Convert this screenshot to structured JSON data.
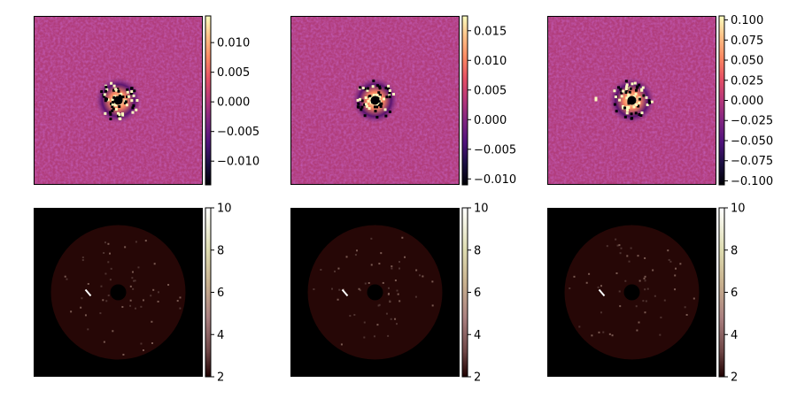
{
  "chart_data": [
    {
      "type": "heatmap",
      "colormap": "magma",
      "description_row": "top",
      "colorbar": {
        "vmin": -0.014,
        "vmax": 0.0145,
        "ticks": [
          {
            "value": 0.01,
            "label": "0.010"
          },
          {
            "value": 0.005,
            "label": "0.005"
          },
          {
            "value": 0.0,
            "label": "0.000"
          },
          {
            "value": -0.005,
            "label": "−0.005"
          },
          {
            "value": -0.01,
            "label": "−0.010"
          }
        ]
      }
    },
    {
      "type": "heatmap",
      "colormap": "magma",
      "description_row": "top",
      "colorbar": {
        "vmin": -0.011,
        "vmax": 0.0175,
        "ticks": [
          {
            "value": 0.015,
            "label": "0.015"
          },
          {
            "value": 0.01,
            "label": "0.010"
          },
          {
            "value": 0.005,
            "label": "0.005"
          },
          {
            "value": 0.0,
            "label": "0.000"
          },
          {
            "value": -0.005,
            "label": "−0.005"
          },
          {
            "value": -0.01,
            "label": "−0.010"
          }
        ]
      }
    },
    {
      "type": "heatmap",
      "colormap": "magma",
      "description_row": "top",
      "colorbar": {
        "vmin": -0.105,
        "vmax": 0.105,
        "ticks": [
          {
            "value": 0.1,
            "label": "0.100"
          },
          {
            "value": 0.075,
            "label": "0.075"
          },
          {
            "value": 0.05,
            "label": "0.050"
          },
          {
            "value": 0.025,
            "label": "0.025"
          },
          {
            "value": 0.0,
            "label": "0.000"
          },
          {
            "value": -0.025,
            "label": "−0.025"
          },
          {
            "value": -0.05,
            "label": "−0.050"
          },
          {
            "value": -0.075,
            "label": "−0.075"
          },
          {
            "value": -0.1,
            "label": "−0.100"
          }
        ]
      }
    },
    {
      "type": "heatmap",
      "colormap": "pink",
      "description_row": "bottom",
      "colorbar": {
        "vmin": 2,
        "vmax": 10,
        "ticks": [
          {
            "value": 10,
            "label": "10"
          },
          {
            "value": 8,
            "label": "8"
          },
          {
            "value": 6,
            "label": "6"
          },
          {
            "value": 4,
            "label": "4"
          },
          {
            "value": 2,
            "label": "2"
          }
        ]
      }
    },
    {
      "type": "heatmap",
      "colormap": "pink",
      "description_row": "bottom",
      "colorbar": {
        "vmin": 2,
        "vmax": 10,
        "ticks": [
          {
            "value": 10,
            "label": "10"
          },
          {
            "value": 8,
            "label": "8"
          },
          {
            "value": 6,
            "label": "6"
          },
          {
            "value": 4,
            "label": "4"
          },
          {
            "value": 2,
            "label": "2"
          }
        ]
      }
    },
    {
      "type": "heatmap",
      "colormap": "pink",
      "description_row": "bottom",
      "colorbar": {
        "vmin": 2,
        "vmax": 10,
        "ticks": [
          {
            "value": 10,
            "label": "10"
          },
          {
            "value": 8,
            "label": "8"
          },
          {
            "value": 6,
            "label": "6"
          },
          {
            "value": 4,
            "label": "4"
          },
          {
            "value": 2,
            "label": "2"
          }
        ]
      }
    }
  ]
}
